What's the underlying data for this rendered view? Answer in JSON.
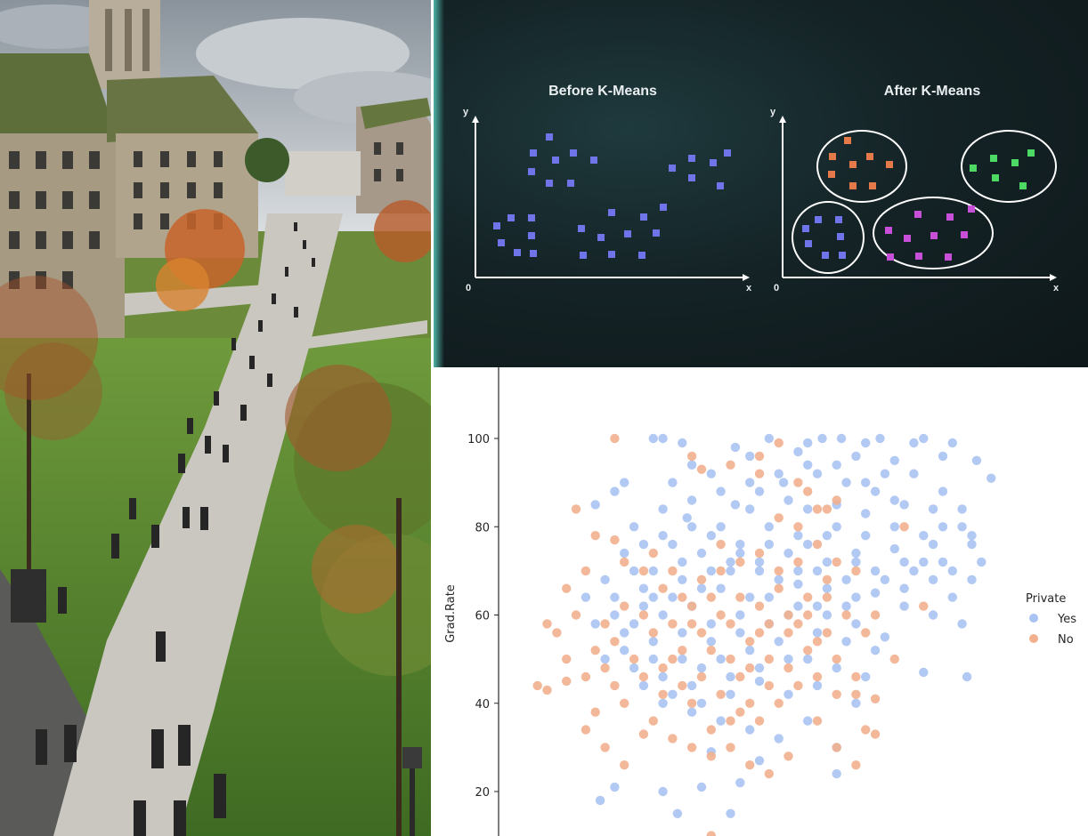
{
  "kmeans": {
    "before_title": "Before K-Means",
    "after_title": "After K-Means",
    "y_label": "y",
    "x_label": "x",
    "origin_label": "0",
    "colors": {
      "unclustered": "#6f74e8",
      "cluster_orange": "#e6794a",
      "cluster_green": "#4cd964",
      "cluster_purple": "#c84fd8",
      "cluster_blue": "#6f74e8",
      "axis": "#ffffff"
    }
  },
  "chart_data": {
    "type": "scatter",
    "title": "",
    "xlabel": "",
    "ylabel": "Grad.Rate",
    "y_ticks": [
      "20",
      "40",
      "60",
      "80",
      "100"
    ],
    "ylim": [
      11,
      116
    ],
    "legend": {
      "title": "Private",
      "entries": [
        {
          "label": "Yes",
          "color": "#a9c3f2"
        },
        {
          "label": "No",
          "color": "#f2b08e"
        }
      ],
      "placement": "right"
    },
    "series": [
      {
        "name": "Yes",
        "color": "#a9c3f2",
        "points": [
          [
            0.28,
            100
          ],
          [
            0.3,
            100
          ],
          [
            0.34,
            99
          ],
          [
            0.45,
            98
          ],
          [
            0.52,
            100
          ],
          [
            0.6,
            99
          ],
          [
            0.63,
            100
          ],
          [
            0.67,
            100
          ],
          [
            0.72,
            99
          ],
          [
            0.75,
            100
          ],
          [
            0.82,
            99
          ],
          [
            0.84,
            100
          ],
          [
            0.9,
            99
          ],
          [
            0.98,
            91
          ],
          [
            0.95,
            95
          ],
          [
            0.88,
            96
          ],
          [
            0.78,
            95
          ],
          [
            0.7,
            96
          ],
          [
            0.58,
            97
          ],
          [
            0.48,
            96
          ],
          [
            0.4,
            92
          ],
          [
            0.36,
            94
          ],
          [
            0.32,
            90
          ],
          [
            0.22,
            90
          ],
          [
            0.2,
            88
          ],
          [
            0.16,
            85
          ],
          [
            0.24,
            80
          ],
          [
            0.35,
            82
          ],
          [
            0.45,
            85
          ],
          [
            0.5,
            88
          ],
          [
            0.55,
            90
          ],
          [
            0.62,
            92
          ],
          [
            0.68,
            90
          ],
          [
            0.74,
            88
          ],
          [
            0.8,
            85
          ],
          [
            0.86,
            84
          ],
          [
            0.92,
            80
          ],
          [
            0.94,
            76
          ],
          [
            0.9,
            70
          ],
          [
            0.84,
            72
          ],
          [
            0.78,
            75
          ],
          [
            0.72,
            78
          ],
          [
            0.66,
            80
          ],
          [
            0.6,
            84
          ],
          [
            0.52,
            80
          ],
          [
            0.46,
            76
          ],
          [
            0.4,
            78
          ],
          [
            0.34,
            72
          ],
          [
            0.28,
            70
          ],
          [
            0.22,
            74
          ],
          [
            0.18,
            68
          ],
          [
            0.14,
            64
          ],
          [
            0.2,
            60
          ],
          [
            0.26,
            62
          ],
          [
            0.32,
            64
          ],
          [
            0.38,
            66
          ],
          [
            0.44,
            70
          ],
          [
            0.5,
            72
          ],
          [
            0.56,
            74
          ],
          [
            0.62,
            70
          ],
          [
            0.68,
            68
          ],
          [
            0.74,
            65
          ],
          [
            0.8,
            62
          ],
          [
            0.86,
            60
          ],
          [
            0.92,
            58
          ],
          [
            0.76,
            55
          ],
          [
            0.7,
            58
          ],
          [
            0.64,
            60
          ],
          [
            0.58,
            62
          ],
          [
            0.52,
            64
          ],
          [
            0.46,
            60
          ],
          [
            0.4,
            58
          ],
          [
            0.34,
            56
          ],
          [
            0.28,
            54
          ],
          [
            0.22,
            56
          ],
          [
            0.16,
            58
          ],
          [
            0.18,
            50
          ],
          [
            0.24,
            48
          ],
          [
            0.3,
            46
          ],
          [
            0.36,
            44
          ],
          [
            0.42,
            50
          ],
          [
            0.48,
            52
          ],
          [
            0.54,
            54
          ],
          [
            0.6,
            50
          ],
          [
            0.66,
            48
          ],
          [
            0.72,
            46
          ],
          [
            0.84,
            47
          ],
          [
            0.93,
            46
          ],
          [
            0.3,
            40
          ],
          [
            0.36,
            38
          ],
          [
            0.42,
            36
          ],
          [
            0.48,
            34
          ],
          [
            0.54,
            32
          ],
          [
            0.6,
            36
          ],
          [
            0.66,
            30
          ],
          [
            0.4,
            29
          ],
          [
            0.5,
            27
          ],
          [
            0.2,
            21
          ],
          [
            0.17,
            18
          ],
          [
            0.3,
            20
          ],
          [
            0.38,
            21
          ],
          [
            0.46,
            22
          ],
          [
            0.66,
            24
          ],
          [
            0.33,
            15
          ],
          [
            0.44,
            15
          ],
          [
            0.56,
            42
          ],
          [
            0.62,
            44
          ],
          [
            0.7,
            40
          ],
          [
            0.5,
            45
          ],
          [
            0.44,
            42
          ],
          [
            0.38,
            48
          ],
          [
            0.58,
            67
          ],
          [
            0.64,
            72
          ],
          [
            0.7,
            74
          ],
          [
            0.48,
            64
          ],
          [
            0.42,
            66
          ],
          [
            0.36,
            62
          ],
          [
            0.3,
            60
          ],
          [
            0.26,
            66
          ],
          [
            0.54,
            68
          ],
          [
            0.6,
            76
          ],
          [
            0.66,
            85
          ],
          [
            0.72,
            83
          ],
          [
            0.78,
            80
          ],
          [
            0.84,
            78
          ],
          [
            0.88,
            88
          ],
          [
            0.82,
            92
          ],
          [
            0.76,
            92
          ],
          [
            0.56,
            86
          ],
          [
            0.48,
            84
          ],
          [
            0.42,
            80
          ],
          [
            0.36,
            86
          ],
          [
            0.3,
            84
          ],
          [
            0.26,
            76
          ],
          [
            0.32,
            76
          ],
          [
            0.38,
            74
          ],
          [
            0.44,
            72
          ],
          [
            0.5,
            70
          ],
          [
            0.56,
            60
          ],
          [
            0.62,
            56
          ],
          [
            0.68,
            54
          ],
          [
            0.74,
            52
          ],
          [
            0.8,
            66
          ],
          [
            0.86,
            68
          ],
          [
            0.9,
            64
          ],
          [
            0.96,
            72
          ],
          [
            0.94,
            68
          ],
          [
            0.7,
            64
          ],
          [
            0.64,
            66
          ],
          [
            0.58,
            70
          ],
          [
            0.52,
            58
          ],
          [
            0.46,
            56
          ],
          [
            0.4,
            54
          ],
          [
            0.34,
            50
          ],
          [
            0.28,
            50
          ],
          [
            0.22,
            52
          ],
          [
            0.26,
            44
          ],
          [
            0.32,
            42
          ],
          [
            0.38,
            40
          ],
          [
            0.44,
            46
          ],
          [
            0.5,
            48
          ],
          [
            0.56,
            50
          ],
          [
            0.62,
            62
          ],
          [
            0.68,
            62
          ],
          [
            0.74,
            70
          ],
          [
            0.8,
            72
          ],
          [
            0.86,
            76
          ],
          [
            0.92,
            84
          ],
          [
            0.88,
            80
          ],
          [
            0.78,
            86
          ],
          [
            0.72,
            90
          ],
          [
            0.66,
            94
          ],
          [
            0.6,
            94
          ],
          [
            0.54,
            92
          ],
          [
            0.48,
            90
          ],
          [
            0.42,
            88
          ],
          [
            0.36,
            80
          ],
          [
            0.3,
            78
          ],
          [
            0.24,
            70
          ],
          [
            0.2,
            64
          ],
          [
            0.24,
            58
          ],
          [
            0.28,
            64
          ],
          [
            0.34,
            68
          ],
          [
            0.4,
            70
          ],
          [
            0.46,
            74
          ],
          [
            0.52,
            76
          ],
          [
            0.58,
            78
          ],
          [
            0.64,
            78
          ],
          [
            0.7,
            72
          ],
          [
            0.76,
            68
          ],
          [
            0.82,
            70
          ],
          [
            0.88,
            72
          ],
          [
            0.94,
            78
          ]
        ]
      },
      {
        "name": "No",
        "color": "#f2b08e",
        "points": [
          [
            0.2,
            100
          ],
          [
            0.54,
            99
          ],
          [
            0.36,
            96
          ],
          [
            0.38,
            93
          ],
          [
            0.5,
            92
          ],
          [
            0.12,
            84
          ],
          [
            0.16,
            78
          ],
          [
            0.2,
            77
          ],
          [
            0.14,
            70
          ],
          [
            0.1,
            66
          ],
          [
            0.12,
            60
          ],
          [
            0.06,
            58
          ],
          [
            0.08,
            56
          ],
          [
            0.1,
            50
          ],
          [
            0.04,
            44
          ],
          [
            0.06,
            43
          ],
          [
            0.1,
            45
          ],
          [
            0.14,
            46
          ],
          [
            0.16,
            52
          ],
          [
            0.18,
            48
          ],
          [
            0.2,
            44
          ],
          [
            0.22,
            40
          ],
          [
            0.16,
            38
          ],
          [
            0.14,
            34
          ],
          [
            0.18,
            30
          ],
          [
            0.22,
            26
          ],
          [
            0.26,
            33
          ],
          [
            0.28,
            36
          ],
          [
            0.32,
            32
          ],
          [
            0.36,
            30
          ],
          [
            0.4,
            28
          ],
          [
            0.44,
            36
          ],
          [
            0.48,
            40
          ],
          [
            0.52,
            44
          ],
          [
            0.56,
            48
          ],
          [
            0.6,
            52
          ],
          [
            0.64,
            56
          ],
          [
            0.3,
            48
          ],
          [
            0.34,
            52
          ],
          [
            0.38,
            56
          ],
          [
            0.42,
            60
          ],
          [
            0.46,
            64
          ],
          [
            0.5,
            62
          ],
          [
            0.54,
            66
          ],
          [
            0.58,
            58
          ],
          [
            0.62,
            54
          ],
          [
            0.66,
            50
          ],
          [
            0.7,
            46
          ],
          [
            0.74,
            41
          ],
          [
            0.28,
            56
          ],
          [
            0.24,
            50
          ],
          [
            0.2,
            54
          ],
          [
            0.26,
            60
          ],
          [
            0.32,
            58
          ],
          [
            0.36,
            62
          ],
          [
            0.4,
            64
          ],
          [
            0.44,
            58
          ],
          [
            0.48,
            54
          ],
          [
            0.52,
            50
          ],
          [
            0.56,
            56
          ],
          [
            0.6,
            60
          ],
          [
            0.64,
            64
          ],
          [
            0.68,
            60
          ],
          [
            0.72,
            56
          ],
          [
            0.34,
            44
          ],
          [
            0.38,
            46
          ],
          [
            0.42,
            42
          ],
          [
            0.46,
            38
          ],
          [
            0.5,
            36
          ],
          [
            0.54,
            40
          ],
          [
            0.58,
            44
          ],
          [
            0.62,
            36
          ],
          [
            0.66,
            30
          ],
          [
            0.7,
            26
          ],
          [
            0.72,
            34
          ],
          [
            0.74,
            33
          ],
          [
            0.7,
            42
          ],
          [
            0.78,
            50
          ],
          [
            0.84,
            62
          ],
          [
            0.22,
            72
          ],
          [
            0.26,
            70
          ],
          [
            0.3,
            66
          ],
          [
            0.34,
            64
          ],
          [
            0.38,
            68
          ],
          [
            0.42,
            70
          ],
          [
            0.46,
            72
          ],
          [
            0.5,
            74
          ],
          [
            0.54,
            70
          ],
          [
            0.58,
            72
          ],
          [
            0.62,
            76
          ],
          [
            0.66,
            72
          ],
          [
            0.7,
            70
          ],
          [
            0.54,
            82
          ],
          [
            0.58,
            80
          ],
          [
            0.62,
            84
          ],
          [
            0.66,
            86
          ],
          [
            0.6,
            88
          ],
          [
            0.32,
            50
          ],
          [
            0.36,
            40
          ],
          [
            0.4,
            34
          ],
          [
            0.44,
            30
          ],
          [
            0.48,
            26
          ],
          [
            0.52,
            24
          ],
          [
            0.56,
            28
          ],
          [
            0.18,
            58
          ],
          [
            0.22,
            62
          ],
          [
            0.26,
            46
          ],
          [
            0.3,
            42
          ],
          [
            0.46,
            46
          ],
          [
            0.5,
            56
          ],
          [
            0.56,
            60
          ],
          [
            0.62,
            46
          ],
          [
            0.66,
            42
          ],
          [
            0.28,
            74
          ],
          [
            0.4,
            52
          ],
          [
            0.44,
            50
          ],
          [
            0.48,
            48
          ],
          [
            0.52,
            58
          ],
          [
            0.6,
            64
          ],
          [
            0.64,
            68
          ],
          [
            0.36,
            58
          ],
          [
            0.32,
            70
          ],
          [
            0.42,
            76
          ],
          [
            0.4,
            10
          ],
          [
            0.74,
            60
          ],
          [
            0.8,
            80
          ],
          [
            0.64,
            84
          ],
          [
            0.58,
            90
          ],
          [
            0.5,
            96
          ],
          [
            0.44,
            94
          ]
        ]
      }
    ]
  }
}
